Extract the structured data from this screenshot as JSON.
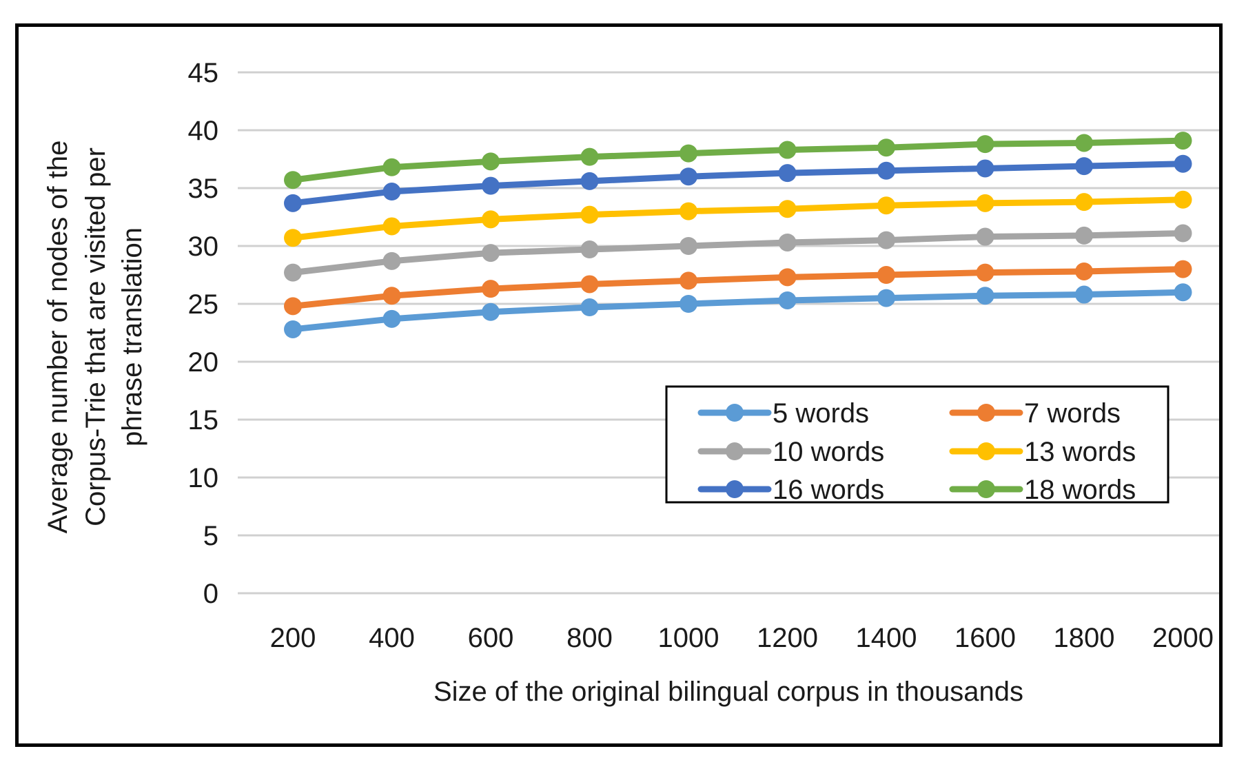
{
  "chart_data": {
    "type": "line",
    "title": "",
    "xlabel": "Size of the original bilingual corpus in thousands",
    "ylabel_lines": [
      "Average number of nodes of the",
      "Corpus-Trie that are visited per",
      "phrase translation"
    ],
    "categories": [
      "200",
      "400",
      "600",
      "800",
      "1000",
      "1200",
      "1400",
      "1600",
      "1800",
      "2000"
    ],
    "ylim": [
      0,
      45
    ],
    "yticks": [
      0,
      5,
      10,
      15,
      20,
      25,
      30,
      35,
      40,
      45
    ],
    "grid": true,
    "legend_position": "lower-right-inside",
    "series": [
      {
        "name": "5 words",
        "color": "#5b9bd5",
        "values": [
          22.8,
          23.7,
          24.3,
          24.7,
          25.0,
          25.3,
          25.5,
          25.7,
          25.8,
          26.0
        ]
      },
      {
        "name": "7 words",
        "color": "#ed7d31",
        "values": [
          24.8,
          25.7,
          26.3,
          26.7,
          27.0,
          27.3,
          27.5,
          27.7,
          27.8,
          28.0
        ]
      },
      {
        "name": "10 words",
        "color": "#a5a5a5",
        "values": [
          27.7,
          28.7,
          29.4,
          29.7,
          30.0,
          30.3,
          30.5,
          30.8,
          30.9,
          31.1
        ]
      },
      {
        "name": "13 words",
        "color": "#ffc000",
        "values": [
          30.7,
          31.7,
          32.3,
          32.7,
          33.0,
          33.2,
          33.5,
          33.7,
          33.8,
          34.0
        ]
      },
      {
        "name": "16 words",
        "color": "#4472c4",
        "values": [
          33.7,
          34.7,
          35.2,
          35.6,
          36.0,
          36.3,
          36.5,
          36.7,
          36.9,
          37.1
        ]
      },
      {
        "name": "18 words",
        "color": "#70ad47",
        "values": [
          35.7,
          36.8,
          37.3,
          37.7,
          38.0,
          38.3,
          38.5,
          38.8,
          38.9,
          39.1
        ]
      }
    ]
  }
}
